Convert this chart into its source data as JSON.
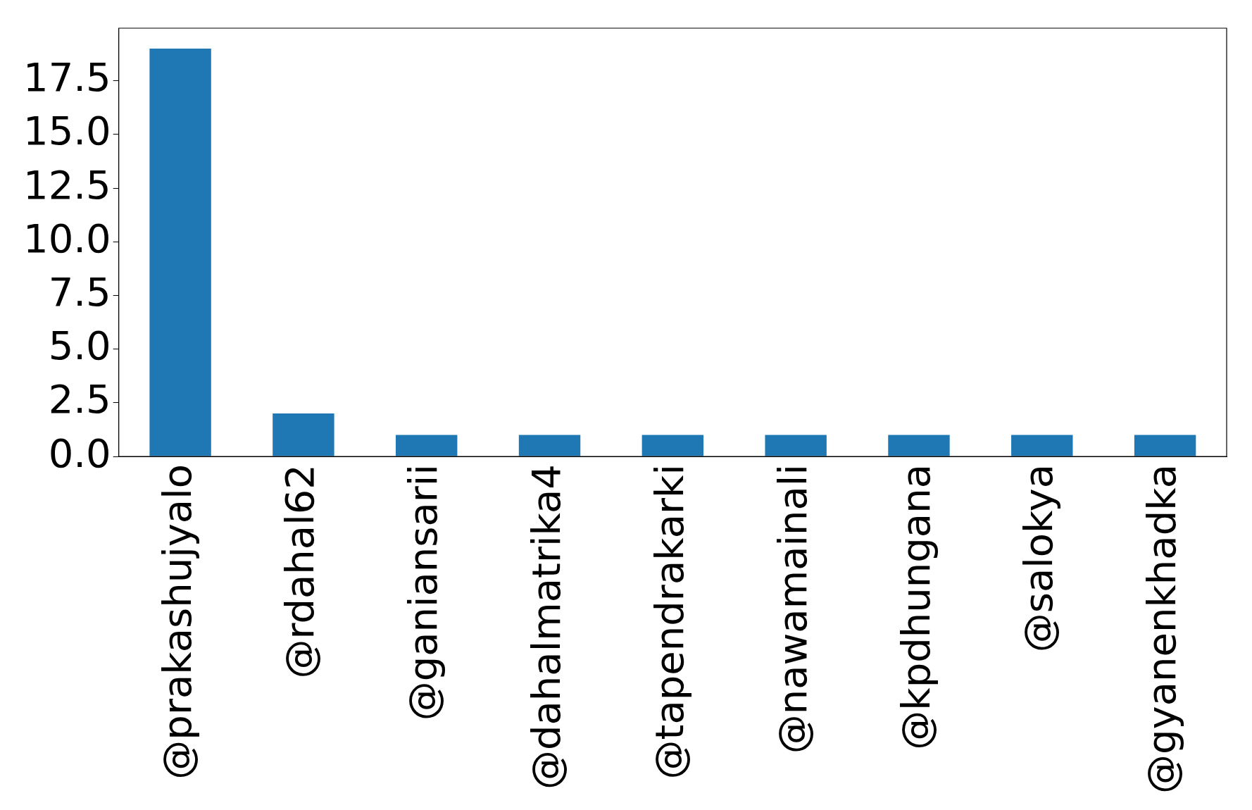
{
  "chart_data": {
    "type": "bar",
    "categories": [
      "@prakashujyalo",
      "@rdahal62",
      "@ganiansarii",
      "@dahalmatrika4",
      "@tapendrakarki",
      "@nawamainali",
      "@kpdhungana",
      "@salokya",
      "@gyanenkhadka"
    ],
    "values": [
      19,
      2,
      1,
      1,
      1,
      1,
      1,
      1,
      1
    ],
    "color": "#1f77b4",
    "ylim": [
      0,
      19.95
    ],
    "yticks": [
      {
        "value": 0,
        "label": "0.0"
      },
      2.5,
      {
        "value": 5,
        "label": "5.0"
      },
      7.5,
      {
        "value": 10,
        "label": "10.0"
      },
      12.5,
      {
        "value": 15,
        "label": "15.0"
      },
      17.5
    ],
    "grid": false,
    "legend": false
  }
}
